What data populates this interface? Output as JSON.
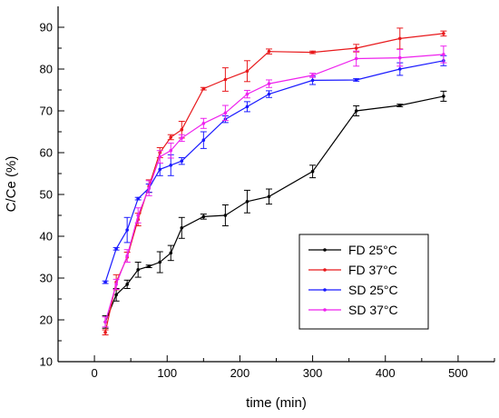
{
  "chart_data": {
    "type": "line",
    "title": "",
    "xlabel": "time (min)",
    "ylabel": "C/Ce (%)",
    "xlim": [
      -50,
      550
    ],
    "ylim": [
      10,
      95
    ],
    "xticks": [
      0,
      100,
      200,
      300,
      400,
      500
    ],
    "yticks": [
      10,
      20,
      30,
      40,
      50,
      60,
      70,
      80,
      90
    ],
    "grid": false,
    "legend_position": "bottom-right",
    "series": [
      {
        "name": "FD 25°C",
        "color": "#000000",
        "x": [
          15,
          30,
          45,
          60,
          75,
          90,
          105,
          120,
          150,
          180,
          210,
          240,
          300,
          360,
          420,
          480
        ],
        "y": [
          19.5,
          26,
          28.5,
          32,
          32.8,
          33.8,
          36,
          42,
          44.7,
          45,
          48.3,
          49.5,
          55.5,
          70,
          71.3,
          73.5
        ],
        "err": [
          1.5,
          1.5,
          1.0,
          1.8,
          0.3,
          2.5,
          1.8,
          2.5,
          0.6,
          2.5,
          2.7,
          1.8,
          1.5,
          1.2,
          0.3,
          1.2
        ]
      },
      {
        "name": "FD 37°C",
        "color": "#e8191c",
        "x": [
          15,
          30,
          45,
          60,
          75,
          90,
          105,
          120,
          150,
          180,
          210,
          240,
          300,
          360,
          420,
          480
        ],
        "y": [
          17,
          29,
          35,
          44,
          52,
          60,
          63.7,
          65.5,
          75.3,
          77.5,
          79.5,
          84.2,
          84,
          85,
          87.3,
          88.5
        ],
        "err": [
          0.6,
          1.8,
          1.2,
          1.5,
          1.5,
          1.2,
          0.6,
          2.0,
          0.3,
          2.8,
          2.5,
          0.6,
          0.3,
          0.9,
          2.5,
          0.6
        ]
      },
      {
        "name": "SD 25°C",
        "color": "#1a1aff",
        "x": [
          15,
          30,
          45,
          60,
          75,
          90,
          105,
          120,
          150,
          180,
          210,
          240,
          300,
          360,
          420,
          480
        ],
        "y": [
          29,
          37,
          41.5,
          49,
          51.5,
          56,
          57,
          58,
          63,
          68,
          71,
          74,
          77.3,
          77.4,
          80,
          82
        ],
        "err": [
          0.3,
          0.3,
          3.0,
          0.3,
          1.0,
          1.5,
          2.5,
          0.8,
          2.0,
          0.8,
          1.2,
          0.8,
          1.0,
          0.3,
          1.5,
          1.2
        ]
      },
      {
        "name": "SD 37°C",
        "color": "#ee22ee",
        "x": [
          15,
          30,
          45,
          60,
          75,
          90,
          105,
          120,
          150,
          180,
          210,
          240,
          300,
          360,
          420,
          480
        ],
        "y": [
          19.5,
          28.5,
          35.3,
          45,
          51.5,
          59,
          60.5,
          63.5,
          67,
          69.5,
          74,
          76.5,
          78.5,
          82.5,
          82.7,
          83.5
        ],
        "err": [
          1.2,
          1.2,
          1.5,
          1.8,
          1.8,
          1.5,
          1.8,
          0.8,
          1.2,
          1.8,
          0.9,
          0.9,
          0.5,
          1.8,
          2.0,
          2.0
        ]
      }
    ]
  }
}
